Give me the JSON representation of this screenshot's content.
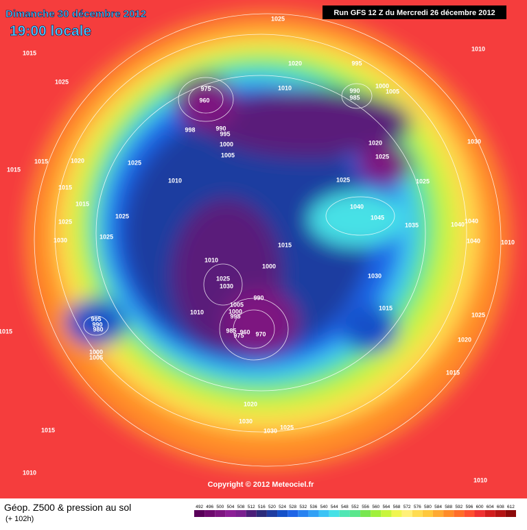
{
  "header": {
    "date": "Dimanche 30 décembre 2012",
    "time": "19:00 locale",
    "run": "Run GFS 12 Z du Mercredi 26 décembre 2012"
  },
  "isobar_labels": [
    1025,
    1010,
    1015,
    1020,
    995,
    1025,
    975,
    990,
    1000,
    1005,
    1010,
    960,
    985,
    998,
    990,
    995,
    1000,
    1005,
    1020,
    1030,
    1015,
    1015,
    1020,
    1025,
    1025,
    1010,
    1025,
    1025,
    1015,
    1015,
    1040,
    1045,
    1025,
    1025,
    1035,
    1040,
    1040,
    1030,
    1025,
    1015,
    1040,
    1010,
    1010,
    1000,
    1030,
    1025,
    1030,
    990,
    1005,
    1000,
    995,
    1010,
    1015,
    1025,
    995,
    990,
    980,
    1015,
    985,
    960,
    975,
    970,
    1020,
    1000,
    1005,
    1015,
    1020,
    1030,
    1025,
    1030,
    1015,
    1010,
    1010
  ],
  "copyright": "Copyright © 2012 Meteociel.fr",
  "footer": {
    "title": "Géop. Z500 & pression au sol",
    "lead": "(+ 102h)"
  },
  "legend": {
    "values": [
      492,
      496,
      500,
      504,
      508,
      512,
      516,
      520,
      524,
      528,
      532,
      536,
      540,
      544,
      548,
      552,
      556,
      560,
      564,
      568,
      572,
      576,
      580,
      584,
      588,
      592,
      596,
      600,
      604,
      608,
      612
    ],
    "colors": [
      "#5a005a",
      "#6e0a6e",
      "#7d1480",
      "#8c1e96",
      "#7a1f8f",
      "#4b1e78",
      "#2b2b7a",
      "#1e3ca0",
      "#1450c8",
      "#1e64e6",
      "#2882f0",
      "#32a0f5",
      "#3cc3f5",
      "#46e1e6",
      "#50e6b4",
      "#5ae68c",
      "#78e650",
      "#a0f03c",
      "#c8f53c",
      "#f0f550",
      "#fff078",
      "#ffdc50",
      "#ffc83c",
      "#ffaa32",
      "#ff8c28",
      "#ff6e28",
      "#ff5030",
      "#f03232",
      "#d21e1e",
      "#b41414",
      "#8c0a0a"
    ]
  }
}
